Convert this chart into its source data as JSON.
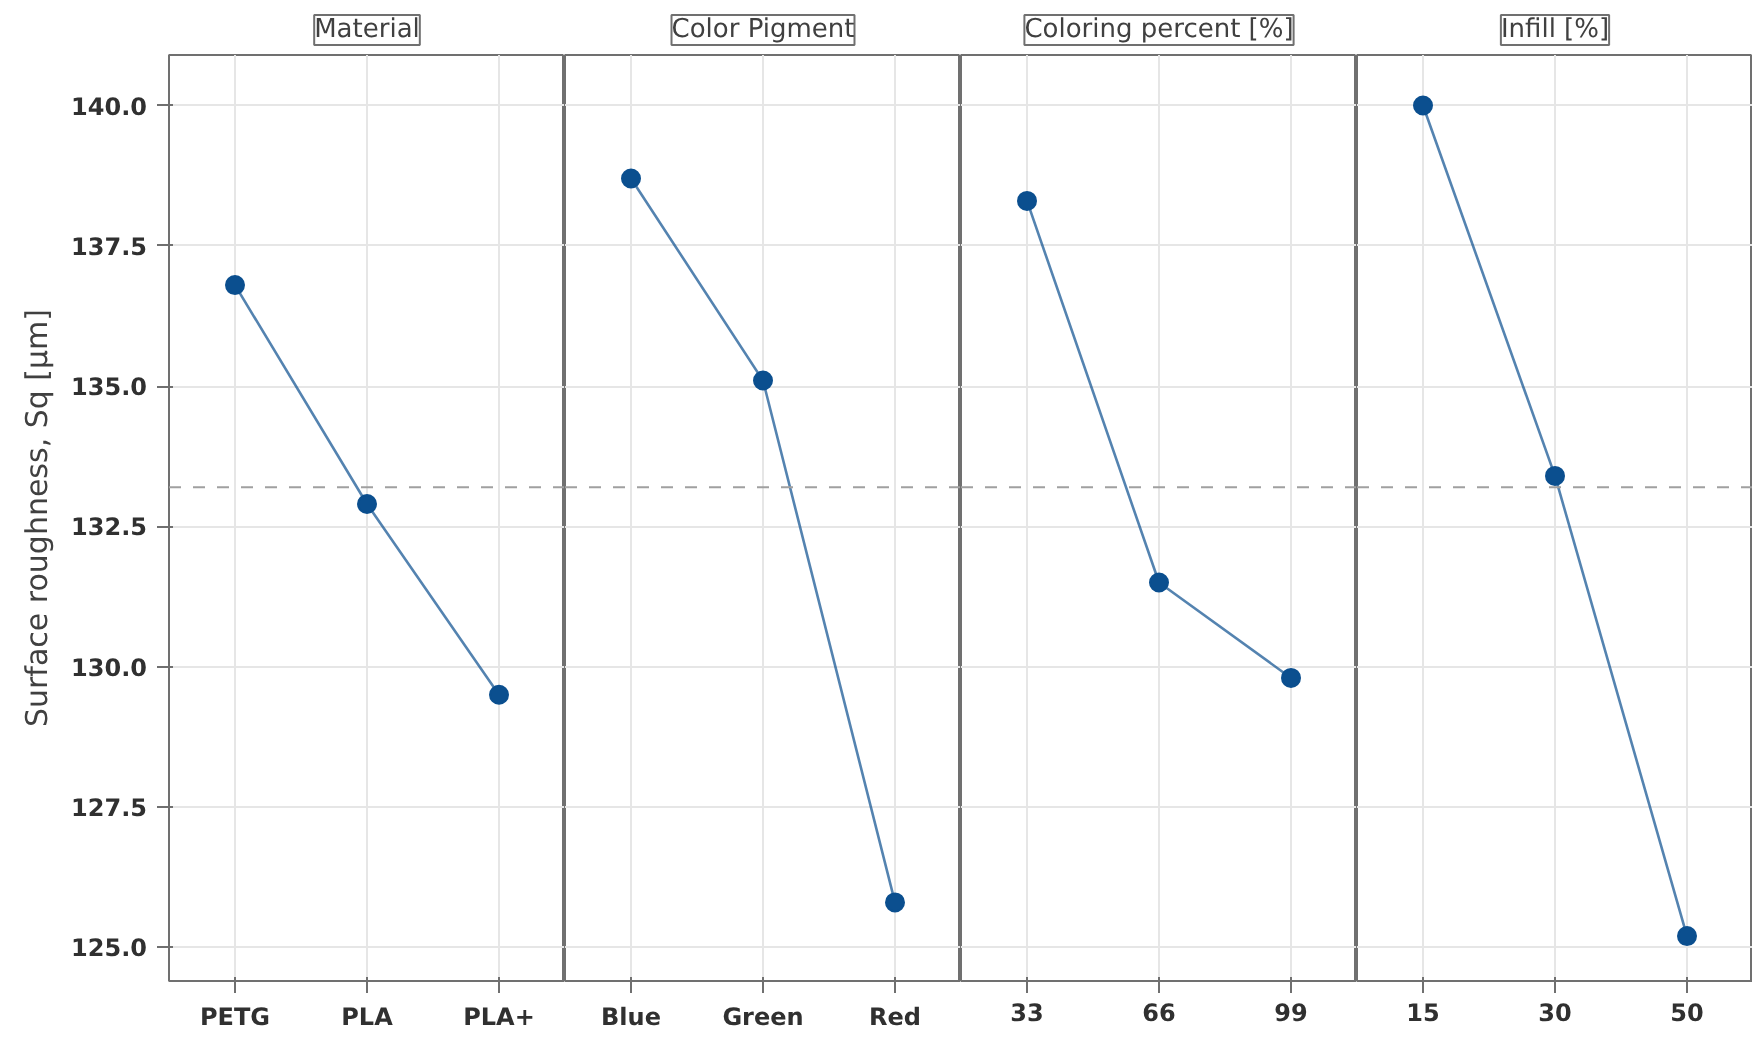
{
  "chart_data": [
    {
      "type": "line",
      "title": "Material",
      "ylabel": "Surface roughness, Sq [µm]",
      "categories": [
        "PETG",
        "PLA",
        "PLA+"
      ],
      "series": [
        {
          "color": "#0b4f8f",
          "values": [
            136.8,
            132.9,
            129.5
          ]
        }
      ],
      "ylim": [
        124.4,
        140.9
      ],
      "yticks": [
        {
          "value": 125,
          "label": "125.0"
        },
        127.5,
        {
          "value": 130,
          "label": "130.0"
        },
        132.5,
        {
          "value": 135,
          "label": "135.0"
        },
        137.5,
        {
          "value": 140,
          "label": "140.0"
        }
      ],
      "ref_lines": [
        {
          "axis": "y",
          "value": 133.2,
          "color": "#a0a0a0",
          "line_style": "dashed"
        }
      ],
      "grid": true,
      "marker": "circle",
      "line_style": "solid"
    },
    {
      "type": "line",
      "title": "Color Pigment",
      "categories": [
        "Blue",
        "Green",
        "Red"
      ],
      "series": [
        {
          "color": "#0b4f8f",
          "values": [
            138.7,
            135.1,
            125.8
          ]
        }
      ],
      "ylim": [
        124.4,
        140.9
      ],
      "tick_labels": "x",
      "ref_lines": [
        {
          "axis": "y",
          "value": 133.2,
          "color": "#a0a0a0",
          "line_style": "dashed"
        }
      ],
      "grid": true,
      "marker": "circle",
      "line_style": "solid"
    },
    {
      "type": "line",
      "title": "Coloring percent [%]",
      "categories": [
        "33",
        "66",
        "99"
      ],
      "series": [
        {
          "color": "#0b4f8f",
          "values": [
            138.3,
            131.5,
            129.8
          ]
        }
      ],
      "ylim": [
        124.4,
        140.9
      ],
      "tick_labels": "x",
      "ref_lines": [
        {
          "axis": "y",
          "value": 133.2,
          "color": "#a0a0a0",
          "line_style": "dashed"
        }
      ],
      "grid": true,
      "marker": "circle",
      "line_style": "solid"
    },
    {
      "type": "line",
      "title": "Infill [%]",
      "categories": [
        "15",
        "30",
        "50"
      ],
      "series": [
        {
          "color": "#0b4f8f",
          "values": [
            140.0,
            133.4,
            125.2
          ]
        }
      ],
      "ylim": [
        124.4,
        140.9
      ],
      "tick_labels": "x",
      "ref_lines": [
        {
          "axis": "y",
          "value": 133.2,
          "color": "#a0a0a0",
          "line_style": "dashed"
        }
      ],
      "grid": true,
      "marker": "circle",
      "line_style": "solid"
    }
  ]
}
